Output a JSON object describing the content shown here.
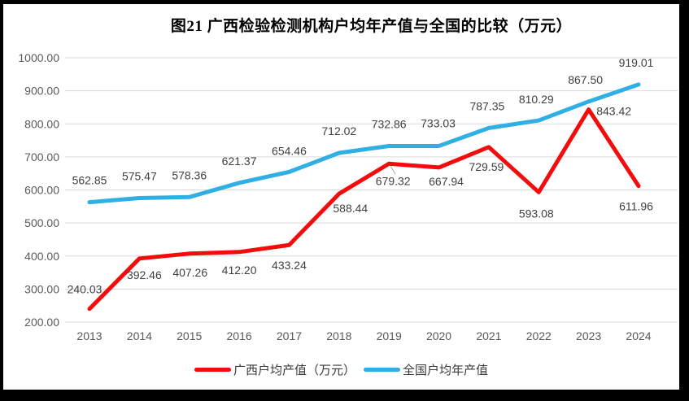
{
  "frame": {
    "color": "#000000",
    "canvas_color": "#ffffff"
  },
  "chart_data": {
    "type": "line",
    "title": "图21 广西检验检测机构户均年产值与全国的比较（万元）",
    "categories": [
      "2013",
      "2014",
      "2015",
      "2016",
      "2017",
      "2018",
      "2019",
      "2020",
      "2021",
      "2022",
      "2023",
      "2024"
    ],
    "series": [
      {
        "key": "guangxi",
        "name": "广西户均产值（万元）",
        "color": "#f20c0c",
        "values": [
          240.03,
          392.46,
          407.26,
          412.2,
          433.24,
          588.44,
          679.32,
          667.94,
          729.59,
          593.08,
          843.42,
          611.96
        ],
        "label_offsets": [
          [
            -6,
            -24
          ],
          [
            6,
            20
          ],
          [
            1,
            23
          ],
          [
            0,
            22
          ],
          [
            0,
            25
          ],
          [
            14,
            18
          ],
          [
            5,
            21
          ],
          [
            9,
            17
          ],
          [
            -3,
            24
          ],
          [
            -3,
            26
          ],
          [
            31,
            2
          ],
          [
            -3,
            25
          ]
        ]
      },
      {
        "key": "national",
        "name": "全国户均年产值",
        "color": "#2fafe3",
        "values": [
          562.85,
          575.47,
          578.36,
          621.37,
          654.46,
          712.02,
          732.86,
          733.03,
          787.35,
          810.29,
          867.5,
          919.01
        ],
        "label_offsets": [
          [
            0,
            -27
          ],
          [
            0,
            -27
          ],
          [
            0,
            -27
          ],
          [
            0,
            -27
          ],
          [
            0,
            -26
          ],
          [
            0,
            -27
          ],
          [
            0,
            -27
          ],
          [
            -1,
            -28
          ],
          [
            -2,
            -27
          ],
          [
            -3,
            -26
          ],
          [
            -4,
            -27
          ],
          [
            -3,
            -27
          ]
        ]
      }
    ],
    "ylim": [
      200,
      1000
    ],
    "ytick_step": 100,
    "tick_decimals": 2,
    "label_decimals": 2,
    "grid": "horizontal-only",
    "grid_color": "#d9d9d9",
    "axis_text_color": "#595959",
    "label_text_color": "#404040",
    "data_labels": true,
    "legend_position": "bottom",
    "leader_line": {
      "series_index": 0,
      "point_index": 6,
      "from": [
        2,
        3
      ],
      "to": [
        8,
        13
      ],
      "color": "#a6a6a6"
    }
  }
}
